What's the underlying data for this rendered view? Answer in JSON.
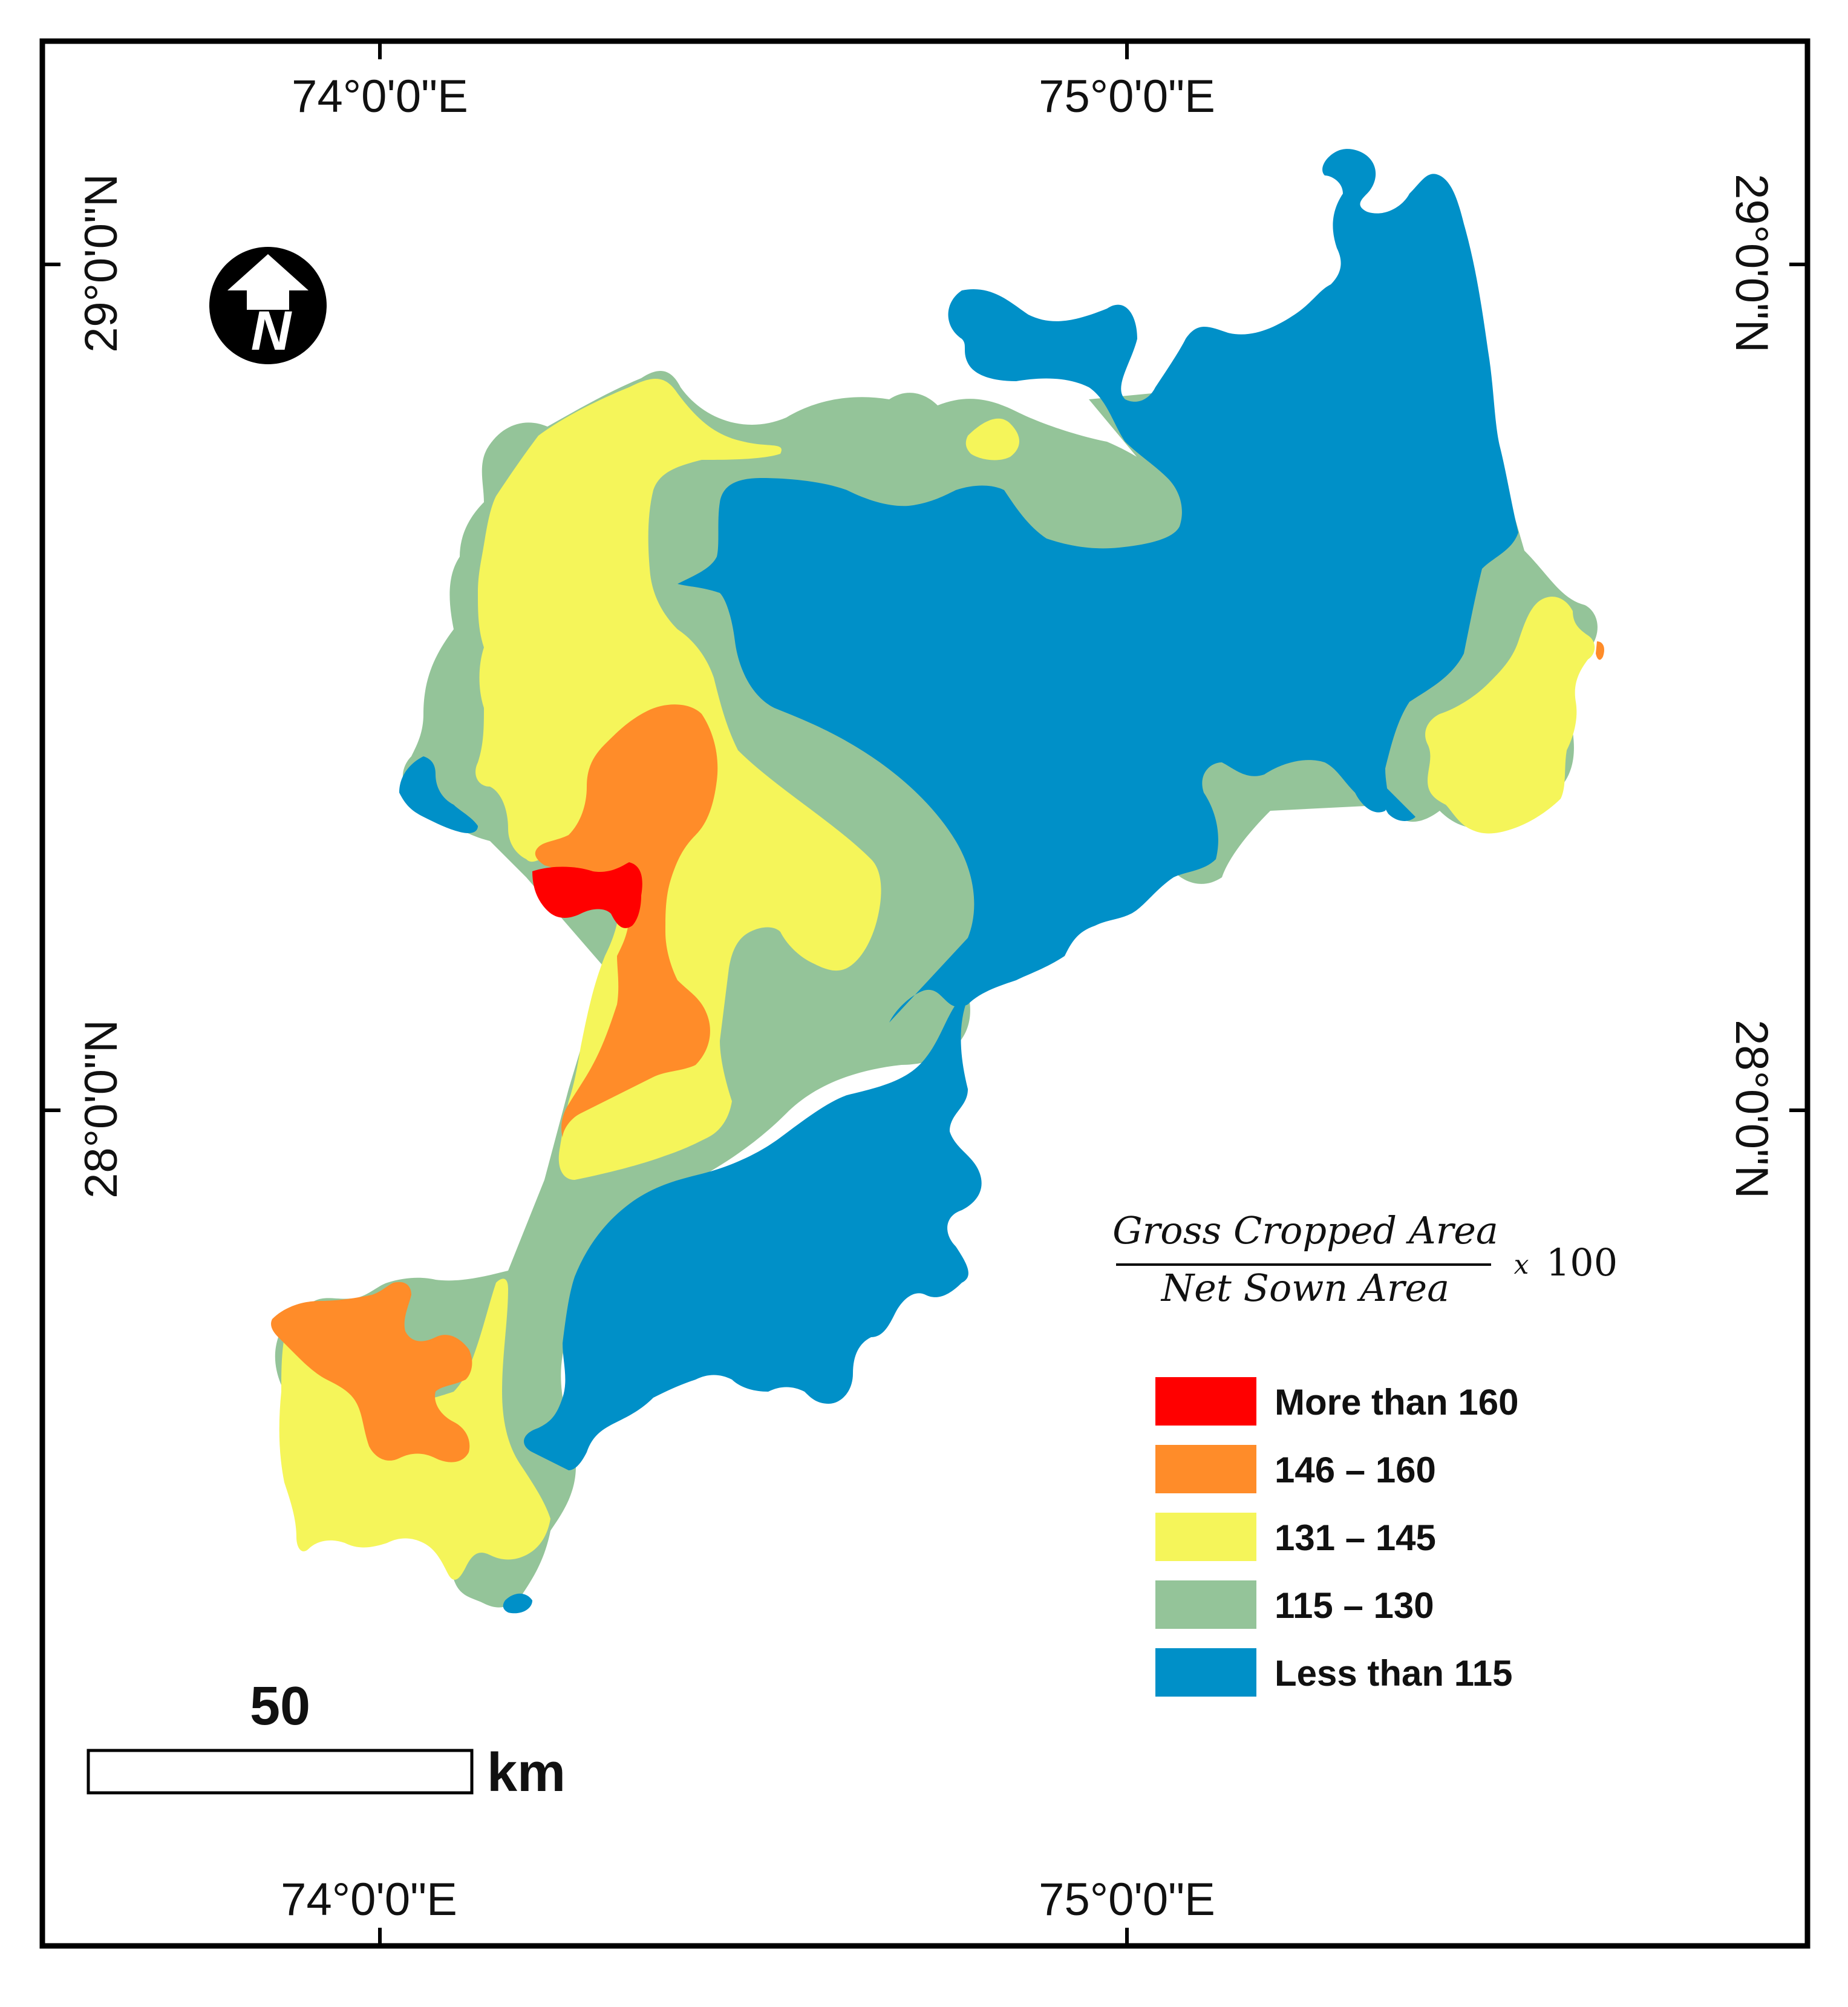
{
  "map": {
    "top_axis_labels": [
      "74°0'0\"E",
      "75°0'0\"E"
    ],
    "bottom_axis_labels": [
      "74°0'0\"E",
      "75°0'0\"E"
    ],
    "left_axis_labels": [
      "29°0'0\"N",
      "28°0'0\"N"
    ],
    "right_axis_labels": [
      "29°0'0\"N",
      "28°0'0\"N"
    ],
    "north_arrow_letter": "N",
    "formula": {
      "numerator": "Gross Cropped Area",
      "denominator": "Net Sown Area",
      "multiplier": "x",
      "factor": "100"
    },
    "legend": [
      {
        "label": "More than 160",
        "color": "#ff0000"
      },
      {
        "label": "146 – 160",
        "color": "#ff8c29"
      },
      {
        "label": "131 – 145",
        "color": "#f5f55a"
      },
      {
        "label": "115 – 130",
        "color": "#94c499"
      },
      {
        "label": "Less than 115",
        "color": "#0090c8"
      }
    ],
    "scale_bar": {
      "value": "50",
      "unit": "km"
    }
  }
}
